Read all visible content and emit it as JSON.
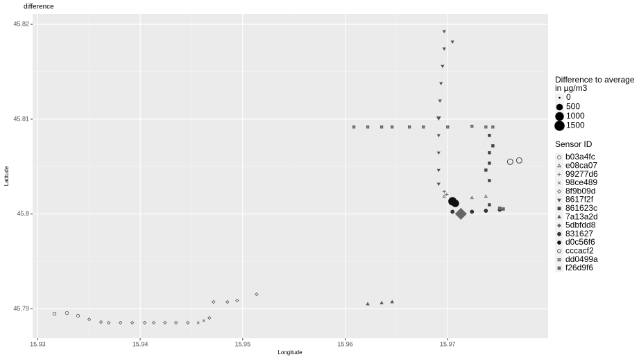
{
  "chart_data": {
    "type": "scatter",
    "title": "difference",
    "x_label": "Longitude",
    "y_label": "Latitude",
    "xlim": [
      15.9295,
      15.9798
    ],
    "ylim": [
      45.7869,
      45.8211
    ],
    "xticks": [
      15.93,
      15.94,
      15.95,
      15.96,
      15.97
    ],
    "yticks": [
      45.79,
      45.8,
      45.81,
      45.82
    ],
    "grid": true,
    "legend_position": "right",
    "size_legend_title": [
      "Difference to average",
      "in µg/m3"
    ],
    "size_legend_values": [
      0,
      500,
      1000,
      1500
    ],
    "color_legend_title": "Sensor ID",
    "series": [
      {
        "name": "b03a4fc",
        "marker": "circle-open",
        "color": "#555555",
        "x": [
          15.93163,
          15.93285,
          15.93393
        ],
        "y": [
          45.78949,
          45.78956,
          45.78927
        ],
        "sizes": [
          40,
          40,
          30
        ]
      },
      {
        "name": "e08ca07",
        "marker": "triangle-open",
        "color": "#555555",
        "x": [
          15.96966,
          15.97047,
          15.97237,
          15.97373
        ],
        "y": [
          45.80185,
          45.8016,
          45.8017,
          45.80185
        ],
        "sizes": [
          30,
          30,
          30,
          30
        ]
      },
      {
        "name": "99277d6",
        "marker": "plus",
        "color": "#555555",
        "x": [
          15.96966,
          15.96991
        ],
        "y": [
          45.80236,
          45.80207
        ],
        "sizes": [
          60,
          60
        ]
      },
      {
        "name": "98ce489",
        "marker": "cross",
        "color": "#555555",
        "x": [
          15.94566,
          15.9462
        ],
        "y": [
          45.78854,
          45.78876
        ],
        "sizes": [
          30,
          30
        ]
      },
      {
        "name": "8f9b09d",
        "marker": "diamond-open",
        "color": "#555555",
        "x": [
          15.93502,
          15.93617,
          15.93692,
          15.93807,
          15.93922,
          15.94044,
          15.94132,
          15.94241,
          15.94349,
          15.94464,
          15.94675,
          15.94715,
          15.94851,
          15.94946,
          15.95136
        ],
        "y": [
          45.7889,
          45.78861,
          45.78854,
          45.78854,
          45.78854,
          45.78854,
          45.78854,
          45.78854,
          45.78854,
          45.78854,
          45.78905,
          45.79073,
          45.79073,
          45.79088,
          45.79154
        ],
        "sizes": [
          30,
          30,
          30,
          30,
          30,
          30,
          30,
          30,
          30,
          30,
          30,
          30,
          30,
          30,
          30
        ]
      },
      {
        "name": "8617f2f",
        "marker": "triangle-down",
        "color": "#555555",
        "x": [
          15.96966,
          15.97047,
          15.96966,
          15.9695,
          15.96935,
          15.96925,
          15.96912,
          15.96912,
          15.96912,
          15.96912,
          15.96912,
          15.96912
        ],
        "y": [
          45.81926,
          45.81816,
          45.81743,
          45.8156,
          45.81378,
          45.81195,
          45.81012,
          45.80829,
          45.80646,
          45.80463,
          45.80317,
          45.81012
        ],
        "sizes": [
          30,
          30,
          30,
          30,
          30,
          30,
          80,
          30,
          30,
          30,
          30,
          120
        ]
      },
      {
        "name": "861623c",
        "marker": "square",
        "color": "#444444",
        "x": [
          15.97407,
          15.97441,
          15.97407,
          15.97407,
          15.97373,
          15.97407,
          15.97407
        ],
        "y": [
          45.80829,
          45.80719,
          45.80646,
          45.80536,
          45.80463,
          45.80353,
          45.80097
        ],
        "sizes": [
          40,
          40,
          40,
          40,
          40,
          40,
          40
        ]
      },
      {
        "name": "7a13a2d",
        "marker": "triangle",
        "color": "#555555",
        "x": [
          15.9622,
          15.96356,
          15.96458
        ],
        "y": [
          45.79051,
          45.79062,
          45.79073
        ],
        "sizes": [
          40,
          40,
          40
        ]
      },
      {
        "name": "5dbfdd8",
        "marker": "diamond",
        "color": "#666666",
        "x": [
          15.97129
        ],
        "y": [
          45.80002
        ],
        "sizes": [
          1500
        ]
      },
      {
        "name": "831627",
        "marker": "dot",
        "color": "#333333",
        "x": [
          15.97047,
          15.97237,
          15.97373,
          15.97508
        ],
        "y": [
          45.80024,
          45.80024,
          45.80034,
          45.80045
        ],
        "sizes": [
          60,
          60,
          60,
          60
        ]
      },
      {
        "name": "d0c56f6",
        "marker": "circle-plus",
        "color": "#111111",
        "x": [
          15.97047,
          15.97075
        ],
        "y": [
          45.80134,
          45.80112
        ],
        "sizes": [
          700,
          500
        ]
      },
      {
        "name": "cccacf2",
        "marker": "circle-open",
        "color": "#444444",
        "x": [
          15.9761,
          15.97698
        ],
        "y": [
          45.80551,
          45.80565
        ],
        "sizes": [
          300,
          300
        ]
      },
      {
        "name": "dd0499a",
        "marker": "square-cross",
        "color": "#555555",
        "x": [
          15.96085,
          15.9622,
          15.96356,
          15.96458,
          15.96627,
          15.96763,
          15.97,
          15.97237,
          15.97373,
          15.97441
        ],
        "y": [
          45.80917,
          45.80917,
          45.80917,
          45.80917,
          45.80917,
          45.80917,
          45.80917,
          45.80924,
          45.80917,
          45.80917
        ],
        "sizes": [
          30,
          30,
          30,
          30,
          30,
          30,
          30,
          30,
          30,
          30
        ]
      },
      {
        "name": "f26d9f6",
        "marker": "square",
        "color": "#666666",
        "x": [
          15.97508,
          15.97542
        ],
        "y": [
          45.80061,
          45.80053
        ],
        "sizes": [
          60,
          60
        ]
      }
    ]
  }
}
